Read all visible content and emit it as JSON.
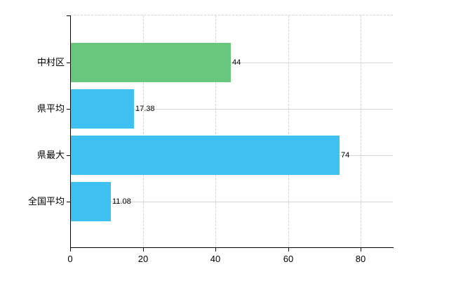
{
  "chart_data": {
    "type": "bar",
    "orientation": "horizontal",
    "title": "",
    "xlabel": "",
    "ylabel": "",
    "categories": [
      "中村区",
      "県平均",
      "県最大",
      "全国平均"
    ],
    "values": [
      44,
      17.38,
      74,
      11.08
    ],
    "value_labels": [
      "44",
      "17.38",
      "74",
      "11.08"
    ],
    "series": [
      {
        "name": "",
        "values": [
          44,
          17.38,
          74,
          11.08
        ]
      }
    ],
    "bar_colors": [
      "#69c77d",
      "#3ec1f0",
      "#3ec1f0",
      "#3ec1f0"
    ],
    "x_ticks": [
      "0",
      "20",
      "40",
      "60",
      "80"
    ],
    "x_tick_values": [
      0,
      20,
      40,
      60,
      80
    ],
    "xlim": [
      0,
      88.9
    ],
    "grid": true,
    "legend": false
  },
  "colors": {
    "green_bar": "#69c77d",
    "blue_bar": "#3ec1f0",
    "axis": "#000000",
    "grid_solid": "#d4d8d4",
    "grid_dashed": "#d3d3d3",
    "background": "#ffffff",
    "text": "#000000"
  }
}
